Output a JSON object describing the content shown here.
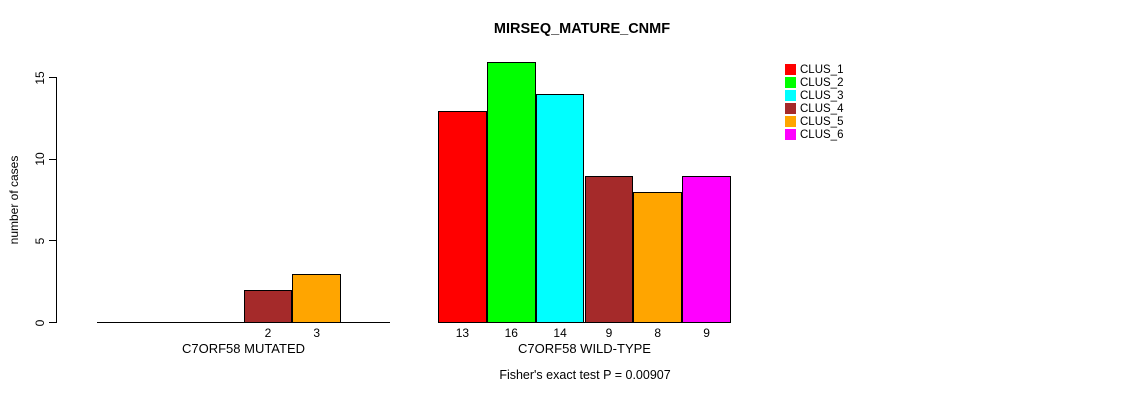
{
  "chart_data": {
    "type": "bar",
    "title": "MIRSEQ_MATURE_CNMF",
    "ylabel": "number of cases",
    "xlabel": "",
    "ylim": [
      0,
      15
    ],
    "yticks": [
      0,
      5,
      10,
      15
    ],
    "grid": false,
    "legend_position": "right",
    "clusters": [
      {
        "name": "CLUS_1",
        "color": "#FF0000"
      },
      {
        "name": "CLUS_2",
        "color": "#00FF00"
      },
      {
        "name": "CLUS_3",
        "color": "#00FFFF"
      },
      {
        "name": "CLUS_4",
        "color": "#A52A2A"
      },
      {
        "name": "CLUS_5",
        "color": "#FFA500"
      },
      {
        "name": "CLUS_6",
        "color": "#FF00FF"
      }
    ],
    "groups": [
      {
        "label": "C7ORF58 MUTATED",
        "values": [
          0,
          0,
          0,
          2,
          3,
          0
        ],
        "bar_labels": [
          "",
          "",
          "",
          "2",
          "3",
          ""
        ]
      },
      {
        "label": "C7ORF58 WILD-TYPE",
        "values": [
          13,
          16,
          14,
          9,
          8,
          9
        ],
        "bar_labels": [
          "13",
          "16",
          "14",
          "9",
          "8",
          "9"
        ]
      }
    ],
    "annotation": "Fisher's exact test P = 0.00907"
  }
}
